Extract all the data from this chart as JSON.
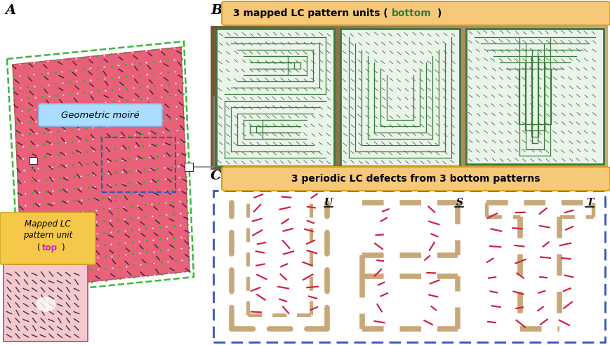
{
  "bg_color": "#ffffff",
  "panel_A_bg": "#e8607a",
  "panel_A_border_color": "#e8607a",
  "green_border_color": "#3db83d",
  "geo_moire_bg": "#aaddff",
  "geo_moire_text": "Geometric moiré",
  "inset_bg": "#f5c8d0",
  "mapped_lc_bg": "#f5c84a",
  "mapped_lc_text1": "Mapped LC",
  "mapped_lc_text2": "pattern unit",
  "mapped_lc_colored": "top",
  "label_A": "A",
  "label_B": "B",
  "label_C": "C",
  "brown_dark": "#7a5535",
  "brown_light": "#c8a878",
  "panel_B_bg": "#e8f5e8",
  "panel_B_border": "#3a7a3a",
  "panel_B_line_color": "#3a7a3a",
  "panel_B_dash_color": "#555555",
  "orange_box_color": "#f5c87a",
  "orange_box_border": "#d4a020",
  "title_B_text1": "3 mapped LC pattern units (",
  "title_B_colored": "bottom",
  "title_B_text2": ")",
  "title_B_color": "#3a7a3a",
  "title_C_text": "3 periodic LC defects from 3 bottom patterns",
  "panel_C_border": "#3355bb",
  "panel_C_bg": "#ffffff",
  "tan_color": "#c8a878",
  "red_color": "#cc2244",
  "blue_dashed": "#3355bb",
  "label_color_UST": "#000000"
}
